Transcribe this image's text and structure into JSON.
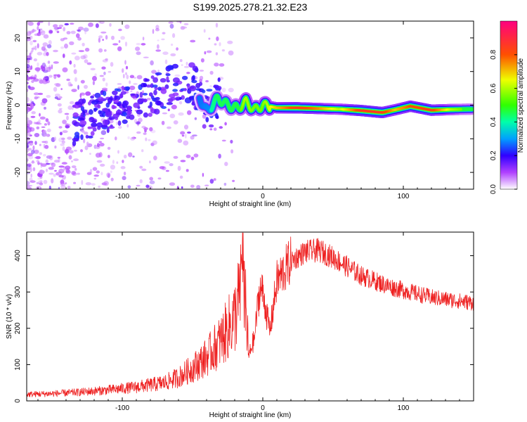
{
  "title": "S199.2025.278.21.32.E23",
  "colors": {
    "snr_line": "#ee2020",
    "axis": "#000000",
    "background": "#ffffff"
  },
  "chart_data": [
    {
      "type": "heatmap",
      "name": "spectrogram",
      "xlabel": "Height of straight line (km)",
      "ylabel": "Frequency (Hz)",
      "xlim": [
        -168,
        150
      ],
      "ylim": [
        -25,
        25
      ],
      "xticks": [
        -100,
        0,
        100
      ],
      "yticks": [
        -20,
        -10,
        0,
        10,
        20
      ],
      "xtick_labels": [
        "-100",
        "0",
        "100"
      ],
      "ytick_labels": [
        "-20",
        "-10",
        "0",
        "10",
        "20"
      ],
      "colorbar": {
        "label": "Normalized spectral amplitude",
        "range": [
          0,
          1
        ],
        "ticks": [
          0.0,
          0.2,
          0.4,
          0.6,
          0.8
        ],
        "tick_labels": [
          "0.0",
          "0.2",
          "0.4",
          "0.6",
          "0.8"
        ]
      },
      "ridge": [
        {
          "x": -125,
          "f": -4,
          "amp": 0.15
        },
        {
          "x": -110,
          "f": -1.5,
          "amp": 0.2
        },
        {
          "x": -95,
          "f": 1.5,
          "amp": 0.2
        },
        {
          "x": -80,
          "f": 3,
          "amp": 0.2
        },
        {
          "x": -65,
          "f": 6,
          "amp": 0.25
        },
        {
          "x": -50,
          "f": 7,
          "amp": 0.2
        },
        {
          "x": -40,
          "f": -2,
          "amp": 0.35
        },
        {
          "x": -32,
          "f": 2,
          "amp": 0.45
        },
        {
          "x": -25,
          "f": 0,
          "amp": 0.45
        },
        {
          "x": -18,
          "f": -1,
          "amp": 0.5
        },
        {
          "x": -12,
          "f": 1,
          "amp": 0.6
        },
        {
          "x": -6,
          "f": -1.5,
          "amp": 0.55
        },
        {
          "x": 0,
          "f": 0,
          "amp": 0.55
        },
        {
          "x": 10,
          "f": -0.8,
          "amp": 0.7
        },
        {
          "x": 25,
          "f": -0.8,
          "amp": 0.85
        },
        {
          "x": 40,
          "f": -1,
          "amp": 0.75
        },
        {
          "x": 55,
          "f": -1.2,
          "amp": 0.6
        },
        {
          "x": 70,
          "f": -1.6,
          "amp": 0.85
        },
        {
          "x": 85,
          "f": -2.2,
          "amp": 0.85
        },
        {
          "x": 95,
          "f": -1.3,
          "amp": 0.7
        },
        {
          "x": 105,
          "f": -0.3,
          "amp": 0.8
        },
        {
          "x": 120,
          "f": -1.5,
          "amp": 0.85
        },
        {
          "x": 135,
          "f": -1.3,
          "amp": 0.6
        },
        {
          "x": 148,
          "f": -1.2,
          "amp": 0.5
        }
      ]
    },
    {
      "type": "line",
      "name": "snr",
      "xlabel": "Height of straight line (km)",
      "ylabel": "SNR (10 * v/v)",
      "xlim": [
        -168,
        150
      ],
      "ylim": [
        0,
        465
      ],
      "xticks": [
        -100,
        0,
        100
      ],
      "yticks": [
        0,
        100,
        200,
        300,
        400
      ],
      "xtick_labels": [
        "-100",
        "0",
        "100"
      ],
      "ytick_labels": [
        "0",
        "100",
        "200",
        "300",
        "400"
      ],
      "envelope": {
        "x": [
          -168,
          -150,
          -130,
          -110,
          -90,
          -70,
          -60,
          -50,
          -40,
          -30,
          -20,
          -16,
          -14,
          -12,
          -10,
          -8,
          -6,
          -4,
          -2,
          0,
          5,
          10,
          20,
          30,
          40,
          50,
          60,
          70,
          80,
          90,
          100,
          110,
          120,
          130,
          140,
          150
        ],
        "y": [
          18,
          20,
          24,
          30,
          38,
          50,
          65,
          90,
          120,
          165,
          230,
          300,
          380,
          240,
          120,
          150,
          170,
          250,
          310,
          300,
          190,
          330,
          385,
          410,
          415,
          395,
          370,
          345,
          330,
          315,
          305,
          295,
          285,
          280,
          275,
          270
        ]
      }
    }
  ]
}
